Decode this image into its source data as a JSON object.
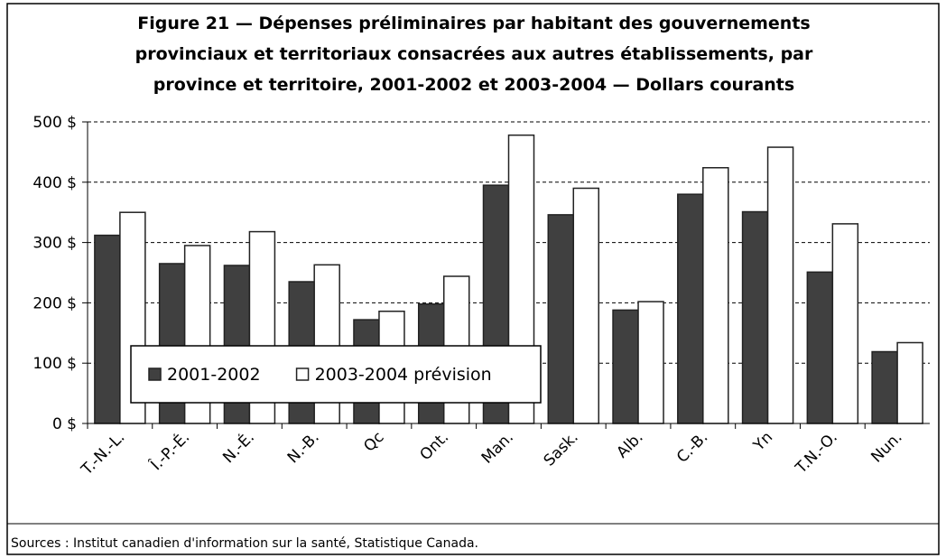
{
  "chart_data": {
    "type": "bar",
    "title": [
      "Figure 21 — Dépenses préliminaires par habitant des gouvernements",
      "provinciaux et territoriaux consacrées aux autres établissements, par",
      "province et territoire, 2001-2002 et 2003-2004 — Dollars courants"
    ],
    "categories": [
      "T.-N.-L.",
      "Î.-P.-É.",
      "N.-É.",
      "N.-B.",
      "Qc",
      "Ont.",
      "Man.",
      "Sask.",
      "Alb.",
      "C.-B.",
      "Yn",
      "T.N.-O.",
      "Nun."
    ],
    "series": [
      {
        "name": "2001-2002",
        "color": "#404040",
        "values": [
          312,
          265,
          262,
          235,
          172,
          198,
          395,
          346,
          188,
          380,
          351,
          251,
          119
        ]
      },
      {
        "name": "2003-2004 prévision",
        "color": "#ffffff",
        "values": [
          350,
          295,
          318,
          263,
          186,
          244,
          478,
          390,
          202,
          424,
          458,
          331,
          134
        ]
      }
    ],
    "ylim": [
      0,
      500
    ],
    "yticks": [
      {
        "value": 0,
        "label": "0 $"
      },
      {
        "value": 100,
        "label": "100 $"
      },
      {
        "value": 200,
        "label": "200 $"
      },
      {
        "value": 300,
        "label": "300 $"
      },
      {
        "value": 400,
        "label": "400 $"
      },
      {
        "value": 500,
        "label": "500 $"
      }
    ],
    "grid": true,
    "source": "Sources : Institut canadien d'information sur la santé, Statistique Canada."
  }
}
